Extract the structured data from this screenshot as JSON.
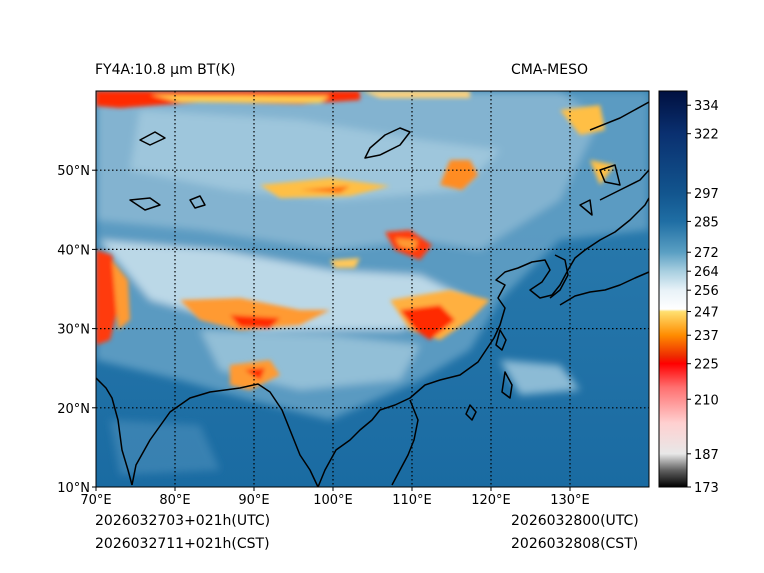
{
  "header": {
    "product": "FY4A:10.8 µm BT(K)",
    "model": "CMA-MESO"
  },
  "footer": {
    "init_utc": "2026032703+021h(UTC)",
    "init_cst": "2026032711+021h(CST)",
    "valid_utc": "2026032800(UTC)",
    "valid_cst": "2026032808(CST)"
  },
  "map": {
    "lon_range": [
      70,
      140
    ],
    "lat_range": [
      10,
      60
    ],
    "lon_ticks": [
      {
        "value": 70,
        "label": "70°E"
      },
      {
        "value": 80,
        "label": "80°E"
      },
      {
        "value": 90,
        "label": "90°E"
      },
      {
        "value": 100,
        "label": "100°E"
      },
      {
        "value": 110,
        "label": "110°E"
      },
      {
        "value": 120,
        "label": "120°E"
      },
      {
        "value": 130,
        "label": "130°E"
      }
    ],
    "lat_ticks": [
      {
        "value": 10,
        "label": "10°N"
      },
      {
        "value": 20,
        "label": "20°N"
      },
      {
        "value": 30,
        "label": "30°N"
      },
      {
        "value": 40,
        "label": "40°N"
      },
      {
        "value": 50,
        "label": "50°N"
      }
    ],
    "gridlines": "dotted"
  },
  "colorbar": {
    "min": 173,
    "max": 340,
    "ticks": [
      {
        "value": 334,
        "label": "334"
      },
      {
        "value": 322,
        "label": "322"
      },
      {
        "value": 297,
        "label": "297"
      },
      {
        "value": 285,
        "label": "285"
      },
      {
        "value": 272,
        "label": "272"
      },
      {
        "value": 264,
        "label": "264"
      },
      {
        "value": 256,
        "label": "256"
      },
      {
        "value": 247,
        "label": "247"
      },
      {
        "value": 237,
        "label": "237"
      },
      {
        "value": 225,
        "label": "225"
      },
      {
        "value": 210,
        "label": "210"
      },
      {
        "value": 187,
        "label": "187"
      },
      {
        "value": 173,
        "label": "173"
      }
    ],
    "stops": [
      {
        "value": 173,
        "color": "#000000"
      },
      {
        "value": 180,
        "color": "#606060"
      },
      {
        "value": 187,
        "color": "#e8e8e8"
      },
      {
        "value": 200,
        "color": "#ffd0d0"
      },
      {
        "value": 215,
        "color": "#ff7070"
      },
      {
        "value": 225,
        "color": "#ff0000"
      },
      {
        "value": 228,
        "color": "#ee2a00"
      },
      {
        "value": 237,
        "color": "#ff8c00"
      },
      {
        "value": 247,
        "color": "#ffe070"
      },
      {
        "value": 248,
        "color": "#ffffff"
      },
      {
        "value": 256,
        "color": "#e8f2f8"
      },
      {
        "value": 264,
        "color": "#a8cfe0"
      },
      {
        "value": 272,
        "color": "#5a9fc3"
      },
      {
        "value": 285,
        "color": "#1f6ea4"
      },
      {
        "value": 297,
        "color": "#12558e"
      },
      {
        "value": 322,
        "color": "#0a3070"
      },
      {
        "value": 340,
        "color": "#001040"
      }
    ]
  }
}
